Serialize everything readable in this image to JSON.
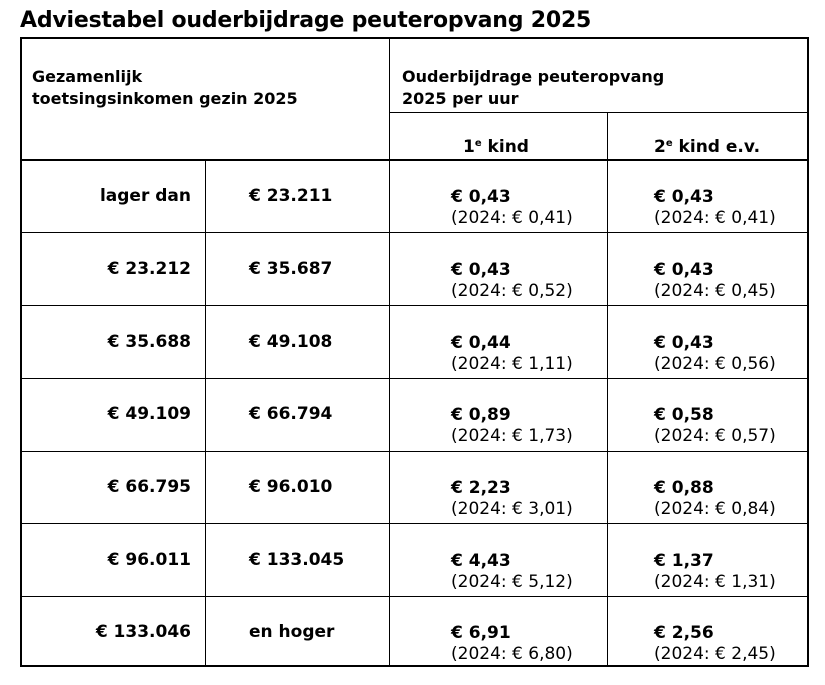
{
  "title": "Adviestabel ouderbijdrage peuteropvang 2025",
  "header": {
    "income_line1": "Gezamenlijk",
    "income_line2": "toetsingsinkomen gezin 2025",
    "contrib_line1": "Ouderbijdrage peuteropvang",
    "contrib_line2": "2025 per uur",
    "col1_prefix": "1",
    "col1_sup": "e",
    "col1_suffix": " kind",
    "col2_prefix": "2",
    "col2_sup": "e",
    "col2_suffix": " kind e.v."
  },
  "rows": [
    {
      "from": "lager dan",
      "to": "€ 23.211",
      "first": "€ 0,43",
      "first_prev": "(2024: € 0,41)",
      "second": "€ 0,43",
      "second_prev": "(2024: € 0,41)"
    },
    {
      "from": "€ 23.212",
      "to": "€ 35.687",
      "first": "€ 0,43",
      "first_prev": "(2024: € 0,52)",
      "second": "€ 0,43",
      "second_prev": "(2024: € 0,45)"
    },
    {
      "from": "€ 35.688",
      "to": "€ 49.108",
      "first": "€ 0,44",
      "first_prev": "(2024: € 1,11)",
      "second": "€ 0,43",
      "second_prev": "(2024: € 0,56)"
    },
    {
      "from": "€ 49.109",
      "to": "€ 66.794",
      "first": "€ 0,89",
      "first_prev": "(2024: € 1,73)",
      "second": "€ 0,58",
      "second_prev": "(2024: € 0,57)"
    },
    {
      "from": "€ 66.795",
      "to": "€ 96.010",
      "first": "€ 2,23",
      "first_prev": "(2024: € 3,01)",
      "second": "€ 0,88",
      "second_prev": "(2024: € 0,84)"
    },
    {
      "from": "€ 96.011",
      "to": "€ 133.045",
      "first": "€ 4,43",
      "first_prev": "(2024: € 5,12)",
      "second": "€ 1,37",
      "second_prev": "(2024: € 1,31)"
    },
    {
      "from": "€ 133.046",
      "to": "en hoger",
      "first": "€ 6,91",
      "first_prev": "(2024: € 6,80)",
      "second": "€ 2,56",
      "second_prev": "(2024: € 2,45)"
    }
  ]
}
